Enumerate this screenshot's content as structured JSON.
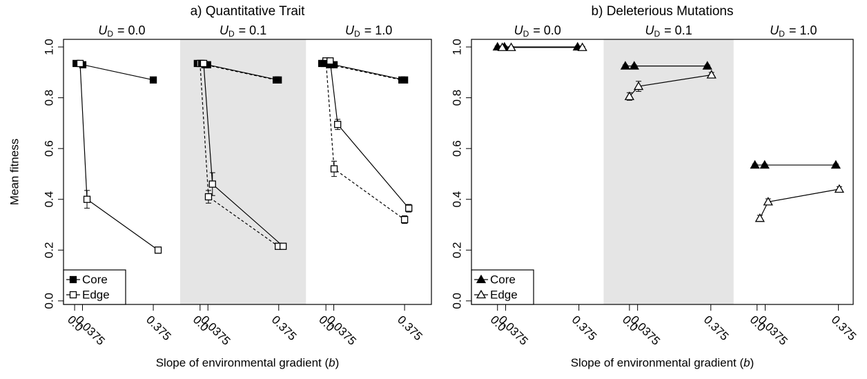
{
  "chart_data": [
    {
      "type": "line",
      "title": "a)  Quantitative Trait",
      "ylabel": "Mean fitness",
      "xlabel": [
        "Slope of environmental gradient (",
        "b",
        ")"
      ],
      "ylim": [
        -0.014,
        1.03
      ],
      "yticks": [
        {
          "value": 0,
          "label": "0.0"
        },
        0.2,
        0.4,
        0.6,
        0.8,
        {
          "value": 1,
          "label": "1.0"
        }
      ],
      "shade_color": "#e5e5e5",
      "legend_position": "lower left",
      "legend": [
        {
          "name": "Core",
          "marker": "filled-square"
        },
        {
          "name": "Edge",
          "marker": "open-square"
        }
      ],
      "facets": [
        {
          "label": {
            "symbol": "U",
            "subscript": "D",
            "rest": "= 0.0"
          },
          "shaded": false,
          "xlim": [
            -0.053,
            0.503
          ],
          "xticks": [
            {
              "value": 0,
              "label": "0.0"
            },
            0.0375,
            0.375
          ],
          "series": [
            {
              "marker": "filled-square",
              "line": "solid",
              "color": "#000000",
              "x": [
                0.007,
                0.039,
                0.375
              ],
              "values": [
                0.935,
                0.93,
                0.87
              ],
              "errors": [
                0.005,
                0.005,
                0.005
              ]
            },
            {
              "marker": "open-square",
              "line": "solid",
              "color": "#000000",
              "x": [
                0.026,
                0.059,
                0.398
              ],
              "values": [
                0.935,
                0.4,
                0.2
              ],
              "errors": [
                0.005,
                0.035,
                0.012
              ]
            }
          ]
        },
        {
          "label": {
            "symbol": "U",
            "subscript": "D",
            "rest": "= 0.1"
          },
          "shaded": true,
          "xlim": [
            -0.095,
            0.505
          ],
          "xticks": [
            {
              "value": 0,
              "label": "0.0"
            },
            0.0375,
            0.375
          ],
          "series": [
            {
              "marker": "filled-square",
              "line": "dashed",
              "color": "#000000",
              "x": [
                -0.013,
                0.023,
                0.363
              ],
              "values": [
                0.935,
                0.93,
                0.87
              ],
              "errors": [
                0.005,
                0.005,
                0.005
              ]
            },
            {
              "marker": "open-square",
              "line": "dashed",
              "color": "#000000",
              "x": [
                0,
                0.04,
                0.373
              ],
              "values": [
                0.935,
                0.41,
                0.215
              ],
              "errors": [
                0.005,
                0.025,
                0.01
              ]
            },
            {
              "marker": "filled-square",
              "line": "solid",
              "color": "#000000",
              "x": [
                0.007,
                0.036,
                0.373
              ],
              "values": [
                0.935,
                0.93,
                0.87
              ],
              "errors": [
                0.005,
                0.005,
                0.005
              ]
            },
            {
              "marker": "open-square",
              "line": "solid",
              "color": "#000000",
              "x": [
                0.017,
                0.059,
                0.396
              ],
              "values": [
                0.935,
                0.46,
                0.215
              ],
              "errors": [
                0.005,
                0.045,
                0.01
              ]
            }
          ]
        },
        {
          "label": {
            "symbol": "U",
            "subscript": "D",
            "rest": "= 1.0"
          },
          "shaded": false,
          "xlim": [
            -0.095,
            0.503
          ],
          "xticks": [
            {
              "value": 0,
              "label": "0.0"
            },
            0.0375,
            0.375
          ],
          "series": [
            {
              "marker": "filled-square",
              "line": "dashed",
              "color": "#000000",
              "x": [
                -0.02,
                0.02,
                0.362
              ],
              "values": [
                0.935,
                0.93,
                0.87
              ],
              "errors": [
                0.005,
                0.005,
                0.005
              ]
            },
            {
              "marker": "open-square",
              "line": "dashed",
              "color": "#000000",
              "x": [
                0,
                0.039,
                0.375
              ],
              "values": [
                0.945,
                0.52,
                0.32
              ],
              "errors": [
                0.005,
                0.03,
                0.015
              ]
            },
            {
              "marker": "filled-square",
              "line": "solid",
              "color": "#000000",
              "x": [
                -0.007,
                0.039,
                0.375
              ],
              "values": [
                0.935,
                0.93,
                0.87
              ],
              "errors": [
                0.005,
                0.005,
                0.005
              ]
            },
            {
              "marker": "open-square",
              "line": "solid",
              "color": "#000000",
              "x": [
                0.02,
                0.056,
                0.395
              ],
              "values": [
                0.945,
                0.695,
                0.365
              ],
              "errors": [
                0.005,
                0.02,
                0.015
              ]
            }
          ]
        }
      ]
    },
    {
      "type": "line",
      "title": "b)  Deleterious Mutations",
      "xlabel": [
        "Slope of environmental gradient (",
        "b",
        ")"
      ],
      "ylim": [
        -0.014,
        1.03
      ],
      "yticks": [
        {
          "value": 0,
          "label": "0.0"
        },
        0.2,
        0.4,
        0.6,
        0.8,
        {
          "value": 1,
          "label": "1.0"
        }
      ],
      "shade_color": "#e5e5e5",
      "legend_position": "lower left",
      "legend": [
        {
          "name": "Core",
          "marker": "filled-triangle"
        },
        {
          "name": "Edge",
          "marker": "open-triangle"
        }
      ],
      "facets": [
        {
          "label": {
            "symbol": "U",
            "subscript": "D",
            "rest": "= 0.0"
          },
          "shaded": false,
          "xlim": [
            -0.12,
            0.489
          ],
          "xticks": [
            {
              "value": 0,
              "label": "0.0"
            },
            0.0375,
            0.375
          ],
          "series": [
            {
              "marker": "filled-triangle",
              "line": "solid",
              "color": "#000000",
              "x": [
                0,
                0.032,
                0.369
              ],
              "values": [
                1.0,
                1.0,
                1.0
              ],
              "errors": [
                0.004,
                0.004,
                0.004
              ]
            },
            {
              "marker": "open-triangle",
              "line": "solid",
              "color": "#000000",
              "x": [
                0.022,
                0.063,
                0.391
              ],
              "values": [
                0.998,
                0.998,
                0.998
              ],
              "errors": [
                0.004,
                0.004,
                0.004
              ]
            }
          ]
        },
        {
          "label": {
            "symbol": "U",
            "subscript": "D",
            "rest": "= 0.1"
          },
          "shaded": true,
          "xlim": [
            -0.119,
            0.48
          ],
          "xticks": [
            {
              "value": 0,
              "label": "0.0"
            },
            0.0375,
            0.375
          ],
          "series": [
            {
              "marker": "filled-triangle",
              "line": "solid",
              "color": "#000000",
              "x": [
                -0.019,
                0.022,
                0.359
              ],
              "values": [
                0.925,
                0.925,
                0.925
              ],
              "errors": [
                0.004,
                0.004,
                0.004
              ]
            },
            {
              "marker": "open-triangle",
              "line": "solid",
              "color": "#000000",
              "x": [
                0,
                0.042,
                0.378
              ],
              "values": [
                0.805,
                0.845,
                0.89
              ],
              "errors": [
                0.015,
                0.02,
                0.01
              ]
            }
          ]
        },
        {
          "label": {
            "symbol": "U",
            "subscript": "D",
            "rest": "= 1.0"
          },
          "shaded": false,
          "xlim": [
            -0.108,
            0.443
          ],
          "xticks": [
            {
              "value": 0,
              "label": "0.0"
            },
            0.0375,
            0.375
          ],
          "series": [
            {
              "marker": "filled-triangle",
              "line": "solid",
              "color": "#000000",
              "x": [
                -0.01,
                0.035,
                0.363
              ],
              "values": [
                0.535,
                0.535,
                0.535
              ],
              "errors": [
                0.004,
                0.004,
                0.004
              ]
            },
            {
              "marker": "open-triangle",
              "line": "solid",
              "color": "#000000",
              "x": [
                0.013,
                0.051,
                0.379
              ],
              "values": [
                0.325,
                0.39,
                0.44
              ],
              "errors": [
                0.012,
                0.012,
                0.01
              ]
            }
          ]
        }
      ]
    }
  ]
}
